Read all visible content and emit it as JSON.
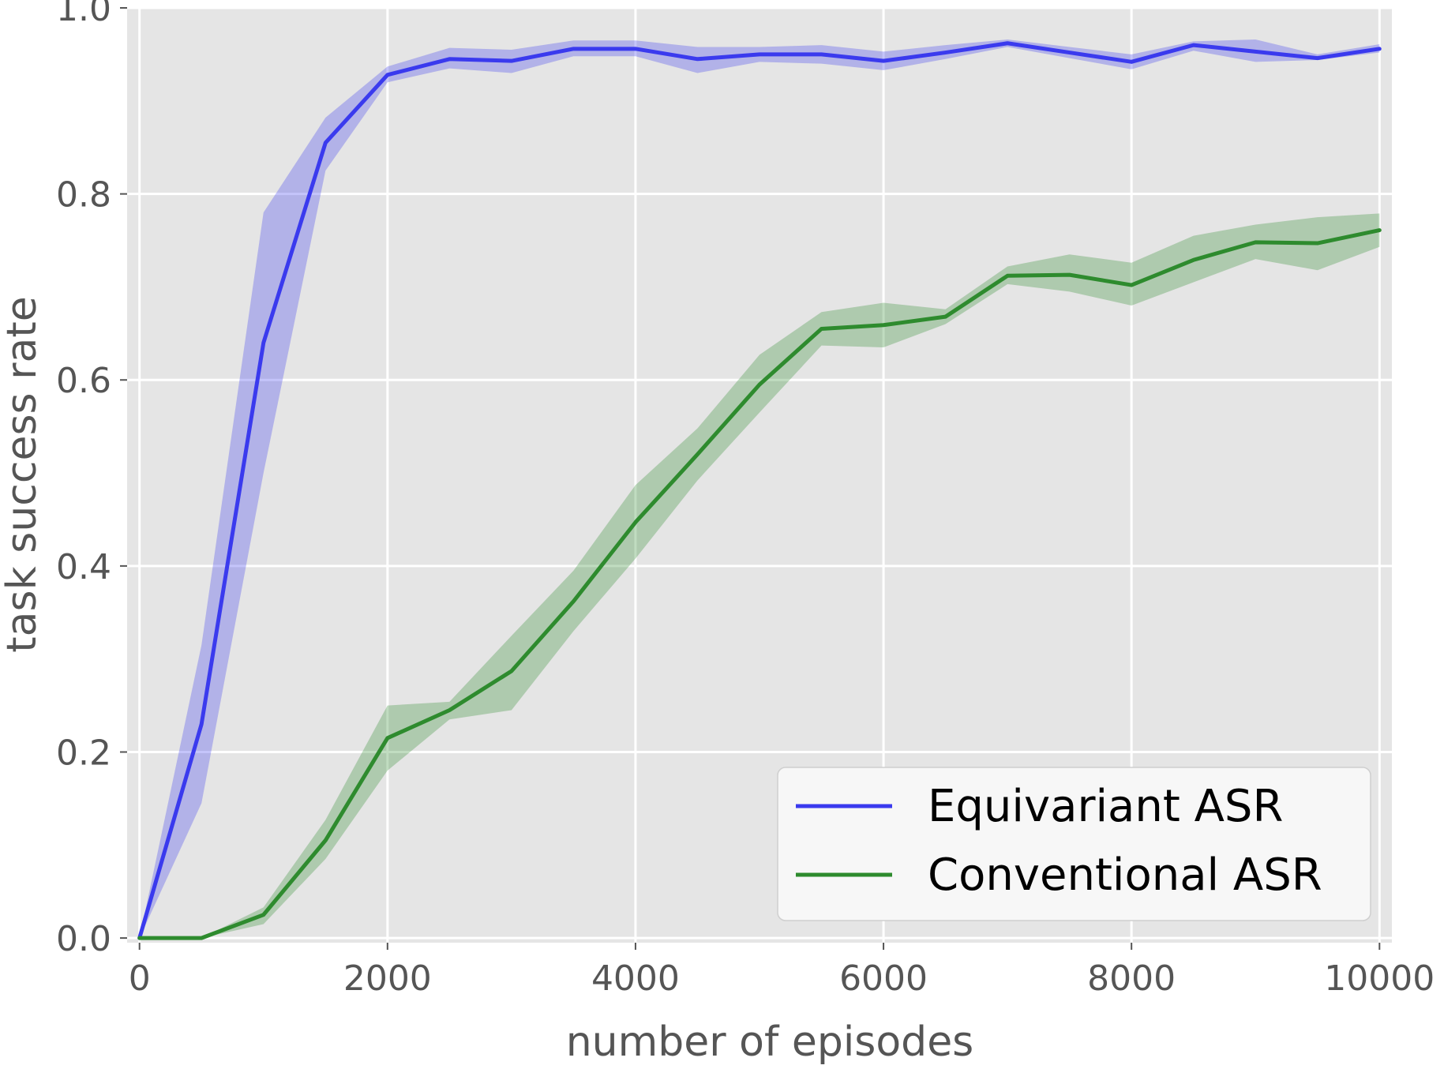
{
  "chart_data": {
    "type": "line",
    "title": "",
    "xlabel": "number of episodes",
    "ylabel": "task success rate",
    "xlim": [
      -100,
      10100
    ],
    "ylim": [
      -0.005,
      1.0
    ],
    "xticks": [
      0,
      2000,
      4000,
      6000,
      8000,
      10000
    ],
    "xtick_labels": [
      "0",
      "2000",
      "4000",
      "6000",
      "8000",
      "10000"
    ],
    "yticks": [
      0.0,
      0.2,
      0.4,
      0.6,
      0.8,
      1.0
    ],
    "ytick_labels": [
      "0.0",
      "0.2",
      "0.4",
      "0.6",
      "0.8",
      "1.0"
    ],
    "grid": true,
    "legend_position": "lower-right",
    "x": [
      0,
      500,
      1000,
      1500,
      2000,
      2500,
      3000,
      3500,
      4000,
      4500,
      5000,
      5500,
      6000,
      6500,
      7000,
      7500,
      8000,
      8500,
      9000,
      9500,
      10000
    ],
    "series": [
      {
        "name": "Equivariant ASR",
        "color": "#3a3aee",
        "values": [
          0.0,
          0.23,
          0.64,
          0.855,
          0.928,
          0.945,
          0.943,
          0.956,
          0.956,
          0.945,
          0.95,
          0.95,
          0.943,
          0.952,
          0.962,
          0.952,
          0.942,
          0.96,
          0.953,
          0.946,
          0.956
        ],
        "lower": [
          0.0,
          0.145,
          0.5,
          0.825,
          0.92,
          0.935,
          0.93,
          0.948,
          0.948,
          0.93,
          0.942,
          0.94,
          0.933,
          0.945,
          0.958,
          0.946,
          0.934,
          0.954,
          0.942,
          0.944,
          0.952
        ],
        "upper": [
          0.0,
          0.315,
          0.78,
          0.882,
          0.937,
          0.957,
          0.955,
          0.965,
          0.965,
          0.958,
          0.958,
          0.96,
          0.953,
          0.96,
          0.966,
          0.958,
          0.95,
          0.964,
          0.966,
          0.95,
          0.961
        ]
      },
      {
        "name": "Conventional ASR",
        "color": "#2e8b2e",
        "values": [
          0.0,
          0.0,
          0.025,
          0.105,
          0.215,
          0.245,
          0.287,
          0.362,
          0.447,
          0.52,
          0.595,
          0.655,
          0.659,
          0.668,
          0.712,
          0.713,
          0.702,
          0.729,
          0.748,
          0.747,
          0.761
        ],
        "lower": [
          0.0,
          0.0,
          0.015,
          0.085,
          0.18,
          0.235,
          0.245,
          0.33,
          0.408,
          0.492,
          0.565,
          0.637,
          0.635,
          0.66,
          0.703,
          0.695,
          0.68,
          0.705,
          0.73,
          0.718,
          0.743
        ],
        "upper": [
          0.0,
          0.0,
          0.033,
          0.127,
          0.25,
          0.254,
          0.325,
          0.395,
          0.487,
          0.548,
          0.627,
          0.673,
          0.683,
          0.676,
          0.722,
          0.735,
          0.726,
          0.755,
          0.767,
          0.775,
          0.779
        ]
      }
    ]
  }
}
